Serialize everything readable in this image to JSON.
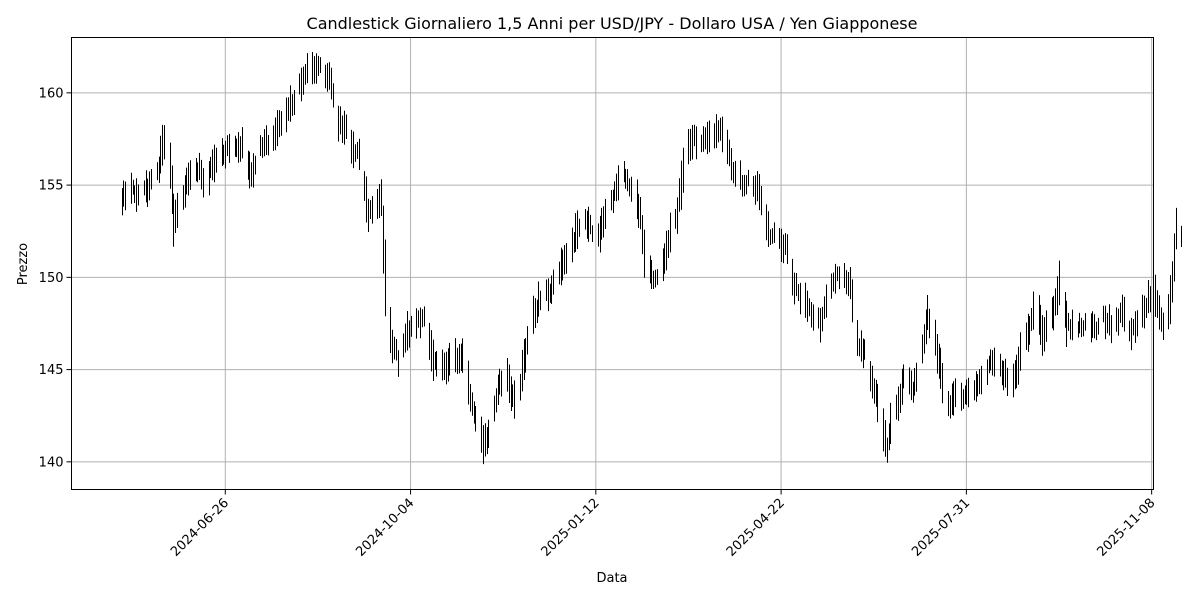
{
  "chart_data": {
    "type": "candlestick",
    "title": "Candlestick Giornaliero 1,5 Anni per USD/JPY - Dollaro USA / Yen Giapponese",
    "xlabel": "Data",
    "ylabel": "Prezzo",
    "x_range": [
      "2024-04-04",
      "2025-11-09"
    ],
    "ylim": [
      138.5,
      163.0
    ],
    "x_ticks": [
      "2024-06-26",
      "2024-10-04",
      "2025-01-12",
      "2025-04-22",
      "2025-07-31",
      "2025-11-08"
    ],
    "y_ticks": [
      140,
      145,
      150,
      155,
      160
    ],
    "grid": true,
    "colors": {
      "candle": "#000000",
      "grid": "#b0b0b0"
    },
    "anchors": [
      [
        "2024-05-01",
        154.2
      ],
      [
        "2024-05-05",
        154.6
      ],
      [
        "2024-05-10",
        154.7
      ],
      [
        "2024-05-15",
        154.8
      ],
      [
        "2024-05-20",
        155.6
      ],
      [
        "2024-05-23",
        157.0
      ],
      [
        "2024-05-26",
        157.6
      ],
      [
        "2024-05-29",
        153.2
      ],
      [
        "2024-06-02",
        154.0
      ],
      [
        "2024-06-06",
        155.4
      ],
      [
        "2024-06-12",
        156.0
      ],
      [
        "2024-06-15",
        155.0
      ],
      [
        "2024-06-20",
        156.3
      ],
      [
        "2024-06-27",
        157.0
      ],
      [
        "2024-07-05",
        157.2
      ],
      [
        "2024-07-10",
        155.6
      ],
      [
        "2024-07-15",
        156.9
      ],
      [
        "2024-07-22",
        157.6
      ],
      [
        "2024-07-30",
        159.0
      ],
      [
        "2024-08-05",
        160.4
      ],
      [
        "2024-08-11",
        161.5
      ],
      [
        "2024-08-17",
        161.3
      ],
      [
        "2024-08-21",
        160.7
      ],
      [
        "2024-08-26",
        158.5
      ],
      [
        "2024-08-30",
        158.0
      ],
      [
        "2024-09-03",
        157.0
      ],
      [
        "2024-09-07",
        156.5
      ],
      [
        "2024-09-11",
        153.5
      ],
      [
        "2024-09-15",
        154.0
      ],
      [
        "2024-09-18",
        154.5
      ],
      [
        "2024-09-20",
        150.0
      ],
      [
        "2024-09-24",
        146.5
      ],
      [
        "2024-09-27",
        145.5
      ],
      [
        "2024-10-02",
        147.0
      ],
      [
        "2024-10-07",
        147.5
      ],
      [
        "2024-10-11",
        148.0
      ],
      [
        "2024-10-16",
        145.5
      ],
      [
        "2024-10-21",
        145.0
      ],
      [
        "2024-10-27",
        145.5
      ],
      [
        "2024-11-01",
        146.0
      ],
      [
        "2024-11-05",
        143.5
      ],
      [
        "2024-11-09",
        142.0
      ],
      [
        "2024-11-12",
        141.0
      ],
      [
        "2024-11-15",
        141.5
      ],
      [
        "2024-11-20",
        144.0
      ],
      [
        "2024-11-25",
        144.5
      ],
      [
        "2024-11-30",
        143.0
      ],
      [
        "2024-12-05",
        146.0
      ],
      [
        "2024-12-09",
        148.0
      ],
      [
        "2024-12-14",
        149.0
      ],
      [
        "2024-12-20",
        149.5
      ],
      [
        "2024-12-27",
        151.0
      ],
      [
        "2025-01-02",
        152.5
      ],
      [
        "2025-01-07",
        153.0
      ],
      [
        "2025-01-13",
        152.2
      ],
      [
        "2025-01-17",
        153.5
      ],
      [
        "2025-01-22",
        154.5
      ],
      [
        "2025-01-27",
        155.5
      ],
      [
        "2025-02-01",
        154.8
      ],
      [
        "2025-02-05",
        153.5
      ],
      [
        "2025-02-08",
        150.5
      ],
      [
        "2025-02-12",
        150.0
      ],
      [
        "2025-02-16",
        150.5
      ],
      [
        "2025-02-20",
        152.0
      ],
      [
        "2025-02-25",
        153.5
      ],
      [
        "2025-03-01",
        156.5
      ],
      [
        "2025-03-05",
        157.5
      ],
      [
        "2025-03-09",
        157.3
      ],
      [
        "2025-03-15",
        157.6
      ],
      [
        "2025-03-19",
        158.1
      ],
      [
        "2025-03-23",
        157.3
      ],
      [
        "2025-03-27",
        155.8
      ],
      [
        "2025-04-01",
        155.2
      ],
      [
        "2025-04-06",
        155.3
      ],
      [
        "2025-04-10",
        154.5
      ],
      [
        "2025-04-15",
        152.5
      ],
      [
        "2025-04-20",
        152.0
      ],
      [
        "2025-04-25",
        151.5
      ],
      [
        "2025-04-29",
        149.5
      ],
      [
        "2025-05-04",
        148.8
      ],
      [
        "2025-05-09",
        148.0
      ],
      [
        "2025-05-13",
        147.5
      ],
      [
        "2025-05-17",
        149.0
      ],
      [
        "2025-05-21",
        150.0
      ],
      [
        "2025-05-25",
        150.3
      ],
      [
        "2025-05-29",
        149.5
      ],
      [
        "2025-06-02",
        146.5
      ],
      [
        "2025-06-06",
        146.0
      ],
      [
        "2025-06-09",
        144.5
      ],
      [
        "2025-06-12",
        143.5
      ],
      [
        "2025-06-15",
        142.3
      ],
      [
        "2025-06-18",
        140.8
      ],
      [
        "2025-06-20",
        142.0
      ],
      [
        "2025-06-24",
        143.0
      ],
      [
        "2025-06-28",
        145.0
      ],
      [
        "2025-07-02",
        144.0
      ],
      [
        "2025-07-06",
        145.5
      ],
      [
        "2025-07-10",
        148.0
      ],
      [
        "2025-07-14",
        146.5
      ],
      [
        "2025-07-18",
        144.5
      ],
      [
        "2025-07-22",
        143.0
      ],
      [
        "2025-07-26",
        144.0
      ],
      [
        "2025-07-30",
        143.5
      ],
      [
        "2025-08-03",
        144.0
      ],
      [
        "2025-08-08",
        144.5
      ],
      [
        "2025-08-13",
        145.5
      ],
      [
        "2025-08-19",
        145.0
      ],
      [
        "2025-08-24",
        144.0
      ],
      [
        "2025-08-29",
        145.8
      ],
      [
        "2025-09-02",
        147.0
      ],
      [
        "2025-09-06",
        148.5
      ],
      [
        "2025-09-10",
        147.0
      ],
      [
        "2025-09-13",
        147.3
      ],
      [
        "2025-09-17",
        148.5
      ],
      [
        "2025-09-20",
        150.2
      ],
      [
        "2025-09-23",
        147.5
      ],
      [
        "2025-09-28",
        147.2
      ],
      [
        "2025-10-03",
        147.5
      ],
      [
        "2025-10-08",
        147.2
      ],
      [
        "2025-10-13",
        147.8
      ],
      [
        "2025-10-18",
        147.3
      ],
      [
        "2025-10-23",
        148.0
      ],
      [
        "2025-10-28",
        147.0
      ],
      [
        "2025-11-01",
        147.5
      ],
      [
        "2025-11-05",
        148.5
      ],
      [
        "2025-11-09",
        149.5
      ],
      [
        "2025-11-12",
        148.0
      ],
      [
        "2025-11-16",
        147.0
      ],
      [
        "2025-11-19",
        150.0
      ],
      [
        "2025-11-21",
        152.5
      ],
      [
        "2025-11-24",
        152.0
      ]
    ]
  }
}
